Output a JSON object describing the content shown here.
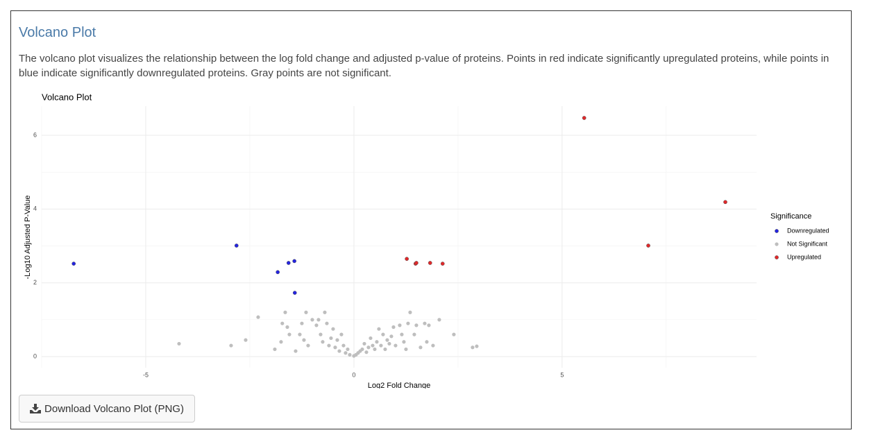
{
  "header": {
    "title": "Volcano Plot",
    "description": "The volcano plot visualizes the relationship between the log fold change and adjusted p-value of proteins. Points in red indicate significantly upregulated proteins, while points in blue indicate significantly downregulated proteins. Gray points are not significant."
  },
  "chart_data": {
    "type": "scatter",
    "title": "Volcano Plot",
    "x_label": "Log2 Fold Change",
    "y_label": "-Log10 Adjusted P-Value",
    "xlim": [
      -7.5,
      9.67
    ],
    "ylim": [
      -0.3,
      6.79
    ],
    "xticks": [
      -5,
      0,
      5
    ],
    "yticks": [
      0,
      2,
      4,
      6
    ],
    "x_minor_grid": [
      -7.5,
      -2.5,
      2.5,
      7.5
    ],
    "y_minor_grid": [
      1,
      3,
      5
    ],
    "grid": true,
    "legend": "right",
    "legend_title": "Significance",
    "series": [
      {
        "name": "Downregulated",
        "color": "#2424e0",
        "x": [
          -6.73,
          -2.82,
          -1.83,
          -1.57,
          -1.43,
          -1.42
        ],
        "values": [
          2.52,
          3.01,
          2.29,
          2.54,
          2.59,
          1.73
        ]
      },
      {
        "name": "Not Significant",
        "color": "#bebebe",
        "x": [
          -4.2,
          -2.95,
          -2.6,
          -2.3,
          -1.9,
          -1.75,
          -1.72,
          -1.65,
          -1.6,
          -1.55,
          -1.4,
          -1.3,
          -1.25,
          -1.2,
          -1.15,
          -1.1,
          -1.0,
          -0.9,
          -0.85,
          -0.8,
          -0.75,
          -0.7,
          -0.65,
          -0.6,
          -0.55,
          -0.5,
          -0.45,
          -0.4,
          -0.35,
          -0.3,
          -0.25,
          -0.2,
          -0.15,
          -0.1,
          0,
          0.05,
          0.1,
          0.15,
          0.2,
          0.25,
          0.3,
          0.35,
          0.4,
          0.45,
          0.5,
          0.55,
          0.6,
          0.65,
          0.7,
          0.75,
          0.8,
          0.85,
          0.9,
          0.95,
          1.0,
          1.1,
          1.15,
          1.2,
          1.25,
          1.3,
          1.35,
          1.45,
          1.5,
          1.6,
          1.7,
          1.75,
          1.8,
          1.9,
          2.05,
          2.4,
          2.85,
          2.95
        ],
        "values": [
          0.35,
          0.3,
          0.45,
          1.07,
          0.2,
          0.4,
          0.9,
          1.2,
          0.8,
          0.6,
          0.15,
          0.6,
          0.9,
          0.45,
          1.2,
          0.3,
          1.0,
          0.85,
          1.0,
          0.6,
          0.4,
          1.2,
          0.9,
          0.3,
          0.5,
          0.75,
          0.25,
          0.45,
          0.15,
          0.6,
          0.3,
          0.1,
          0.2,
          0.05,
          0.02,
          0.05,
          0.1,
          0.15,
          0.2,
          0.35,
          0.12,
          0.25,
          0.5,
          0.3,
          0.2,
          0.4,
          0.75,
          0.3,
          0.6,
          0.2,
          0.45,
          0.35,
          0.55,
          0.8,
          0.3,
          0.85,
          0.6,
          0.4,
          0.2,
          0.9,
          1.2,
          0.6,
          0.85,
          0.25,
          0.9,
          0.4,
          0.85,
          0.3,
          1.0,
          0.6,
          0.25,
          0.28
        ]
      },
      {
        "name": "Upregulated",
        "color": "#e0282a",
        "x": [
          5.53,
          8.92,
          7.07,
          1.27,
          1.48,
          1.5,
          1.83,
          2.13
        ],
        "values": [
          6.47,
          4.19,
          3.01,
          2.65,
          2.52,
          2.54,
          2.54,
          2.52
        ]
      }
    ]
  },
  "button": {
    "label": "Download Volcano Plot (PNG)"
  }
}
